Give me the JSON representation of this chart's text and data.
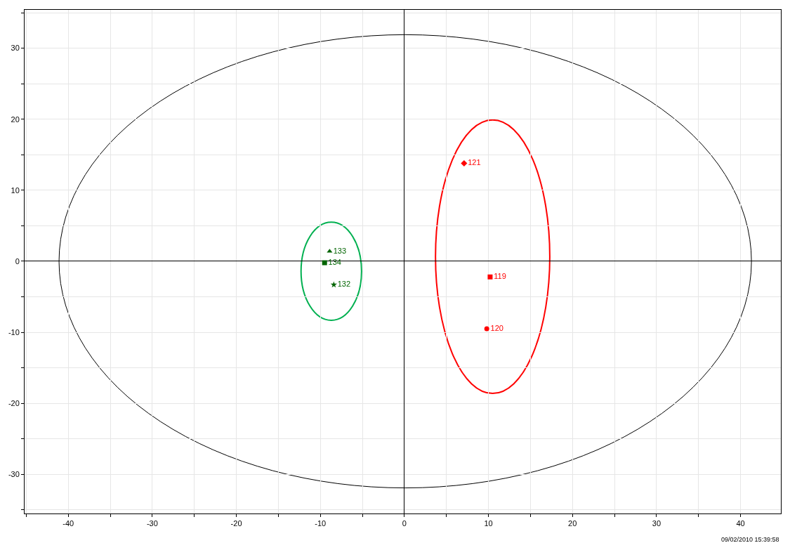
{
  "chart_data": {
    "type": "scatter",
    "xlim": [
      -45.2,
      44.8
    ],
    "ylim": [
      -35.5,
      35.4
    ],
    "xticks": [
      {
        "value": -45,
        "label": null
      },
      -40,
      {
        "value": -35,
        "label": null
      },
      -30,
      {
        "value": -25,
        "label": null
      },
      -20,
      {
        "value": -15,
        "label": null
      },
      -10,
      {
        "value": -5,
        "label": null
      },
      0,
      {
        "value": 5,
        "label": null
      },
      10,
      {
        "value": 15,
        "label": null
      },
      20,
      {
        "value": 25,
        "label": null
      },
      30,
      {
        "value": 35,
        "label": null
      },
      40
    ],
    "yticks": [
      {
        "value": -35,
        "label": null
      },
      -30,
      {
        "value": -25,
        "label": null
      },
      -20,
      {
        "value": -15,
        "label": null
      },
      -10,
      {
        "value": -5,
        "label": null
      },
      0,
      {
        "value": 5,
        "label": null
      },
      10,
      {
        "value": 15,
        "label": null
      },
      20,
      {
        "value": 25,
        "label": null
      },
      30,
      {
        "value": 35,
        "label": null
      }
    ],
    "grid": true,
    "legend": false,
    "series": [
      {
        "name": "121",
        "color": "#ff0000",
        "marker": "diamond",
        "x": [
          7.1
        ],
        "values": [
          13.8
        ]
      },
      {
        "name": "119",
        "color": "#ff0000",
        "marker": "square",
        "x": [
          10.2
        ],
        "values": [
          -2.2
        ]
      },
      {
        "name": "120",
        "color": "#ff0000",
        "marker": "circle",
        "x": [
          9.8
        ],
        "values": [
          -9.5
        ]
      },
      {
        "name": "133",
        "color": "#006400",
        "marker": "triangle",
        "x": [
          -8.9
        ],
        "values": [
          1.4
        ]
      },
      {
        "name": "134",
        "color": "#006400",
        "marker": "square",
        "x": [
          -9.5
        ],
        "values": [
          -0.2
        ]
      },
      {
        "name": "132",
        "color": "#006400",
        "marker": "star",
        "x": [
          -8.4
        ],
        "values": [
          -3.3
        ]
      }
    ],
    "annotations": [
      "09/02/2010 15:39:58"
    ]
  }
}
